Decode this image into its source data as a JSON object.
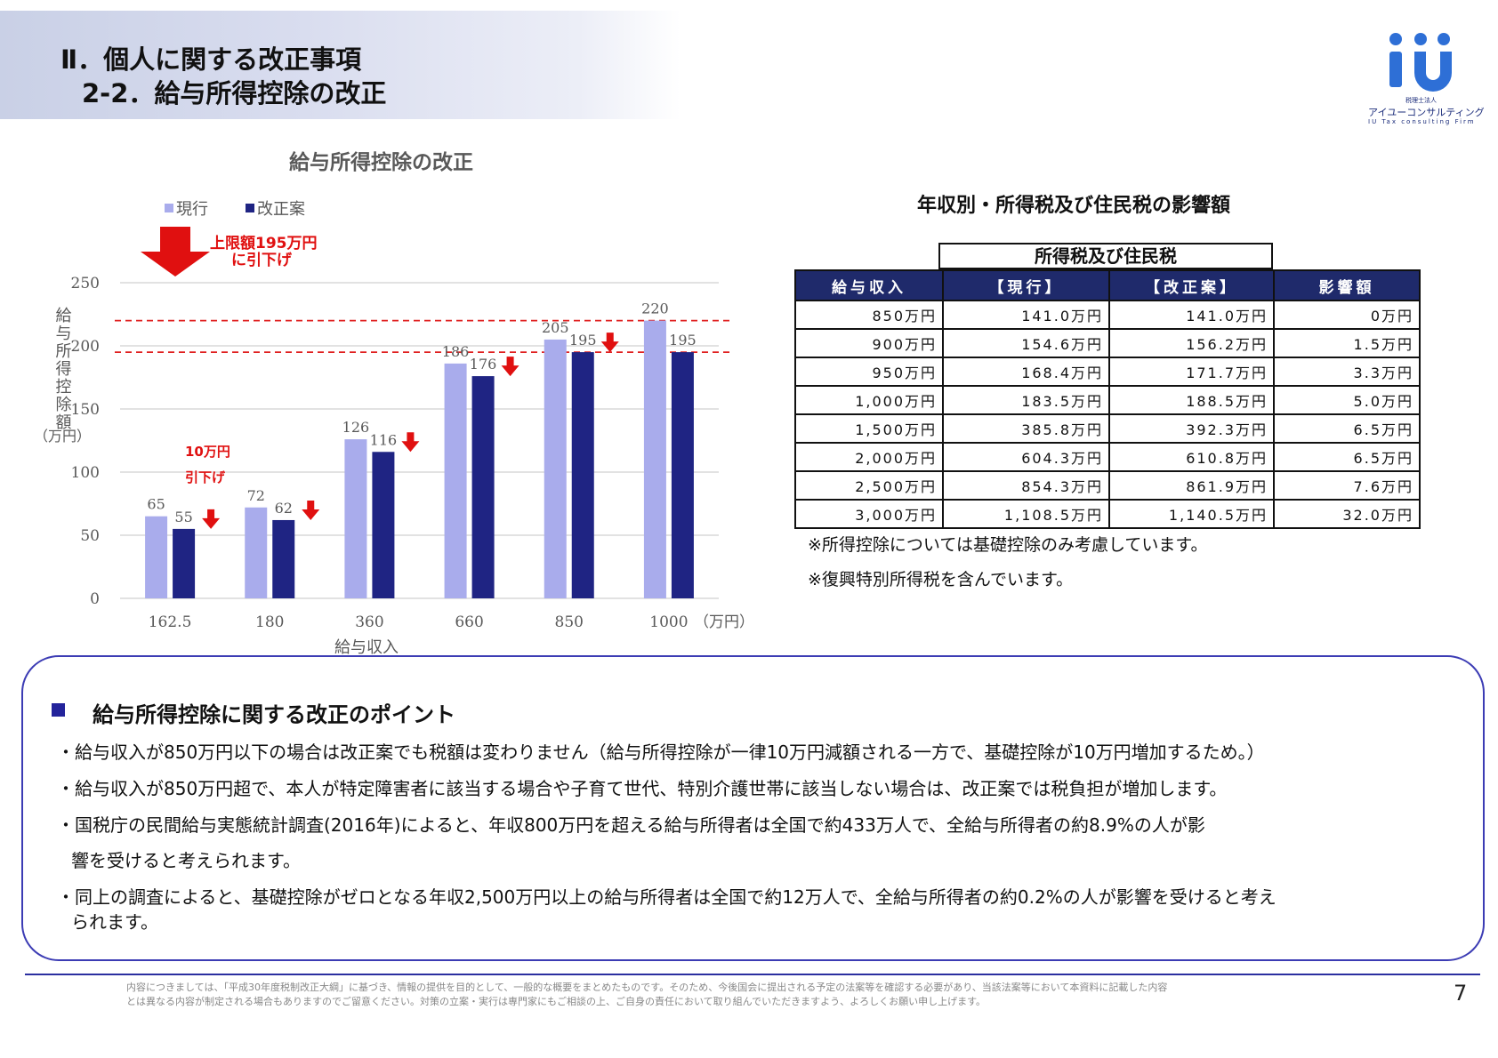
{
  "header": {
    "line1": "Ⅱ．個人に関する改正事項",
    "line2": "2-2．給与所得控除の改正"
  },
  "logo": {
    "brand": "iü",
    "sub1": "税理士法人",
    "sub2": "アイユーコンサルティング",
    "sub3": "IU Tax consulting Firm",
    "color": "#2e6fd6"
  },
  "chart_data": {
    "type": "bar",
    "title": "給与所得控除の改正",
    "categories": [
      "162.5",
      "180",
      "360",
      "660",
      "850",
      "1000"
    ],
    "x_unit": "（万円）",
    "xlabel": "給与収入",
    "ylabel": "給与所得控除額",
    "ylabel_unit": "（万円）",
    "ylim": [
      0,
      250
    ],
    "yticks": [
      0,
      50,
      100,
      150,
      200,
      250
    ],
    "grid": true,
    "legend_position": "top-left",
    "series": [
      {
        "name": "現行",
        "color": "#a9acec",
        "values": [
          65,
          72,
          126,
          186,
          205,
          220
        ]
      },
      {
        "name": "改正案",
        "color": "#1f2483",
        "values": [
          55,
          62,
          116,
          176,
          195,
          195
        ]
      }
    ],
    "reference_lines": [
      220,
      195
    ],
    "annotations": [
      {
        "text": "上限額195万円",
        "text2": "に引下げ"
      },
      {
        "text": "10万円",
        "text2": "引下げ"
      }
    ]
  },
  "table": {
    "title": "年収別・所得税及び住民税の影響額",
    "group_header": "所得税及び住民税",
    "headers": [
      "給与収入",
      "【現行】",
      "【改正案】",
      "影響額"
    ],
    "rows": [
      [
        "850万円",
        "141.0万円",
        "141.0万円",
        "0万円"
      ],
      [
        "900万円",
        "154.6万円",
        "156.2万円",
        "1.5万円"
      ],
      [
        "950万円",
        "168.4万円",
        "171.7万円",
        "3.3万円"
      ],
      [
        "1,000万円",
        "183.5万円",
        "188.5万円",
        "5.0万円"
      ],
      [
        "1,500万円",
        "385.8万円",
        "392.3万円",
        "6.5万円"
      ],
      [
        "2,000万円",
        "604.3万円",
        "610.8万円",
        "6.5万円"
      ],
      [
        "2,500万円",
        "854.3万円",
        "861.9万円",
        "7.6万円"
      ],
      [
        "3,000万円",
        "1,108.5万円",
        "1,140.5万円",
        "32.0万円"
      ]
    ],
    "note1": "※所得控除については基礎控除のみ考慮しています。",
    "note2": "※復興特別所得税を含んでいます。"
  },
  "points": {
    "title": "給与所得控除に関する改正のポイント",
    "b1": "・給与収入が850万円以下の場合は改正案でも税額は変わりません（給与所得控除が一律10万円減額される一方で、基礎控除が10万円増加するため。）",
    "b2": "・給与収入が850万円超で、本人が特定障害者に該当する場合や子育て世代、特別介護世帯に該当しない場合は、改正案では税負担が増加します。",
    "b3a": "・国税庁の民間給与実態統計調査(2016年)によると、年収800万円を超える給与所得者は全国で約433万人で、全給与所得者の約8.9%の人が影",
    "b3b": "響を受けると考えられます。",
    "b4a": "・同上の調査によると、基礎控除がゼロとなる年収2,500万円以上の給与所得者は全国で約12万人で、全給与所得者の約0.2%の人が影響を受けると考え",
    "b4b": "られます。"
  },
  "footer": {
    "line1": "内容につきましては、「平成30年度税制改正大綱」に基づき、情報の提供を目的として、一般的な概要をまとめたものです。そのため、今後国会に提出される予定の法案等を確認する必要があり、当該法案等において本資料に記載した内容",
    "line2": "とは異なる内容が制定される場合もありますのでご留意ください。対策の立案・実行は専門家にもご相談の上、ご自身の責任において取り組んでいただきますよう、よろしくお願い申し上げます。",
    "page": "7"
  }
}
